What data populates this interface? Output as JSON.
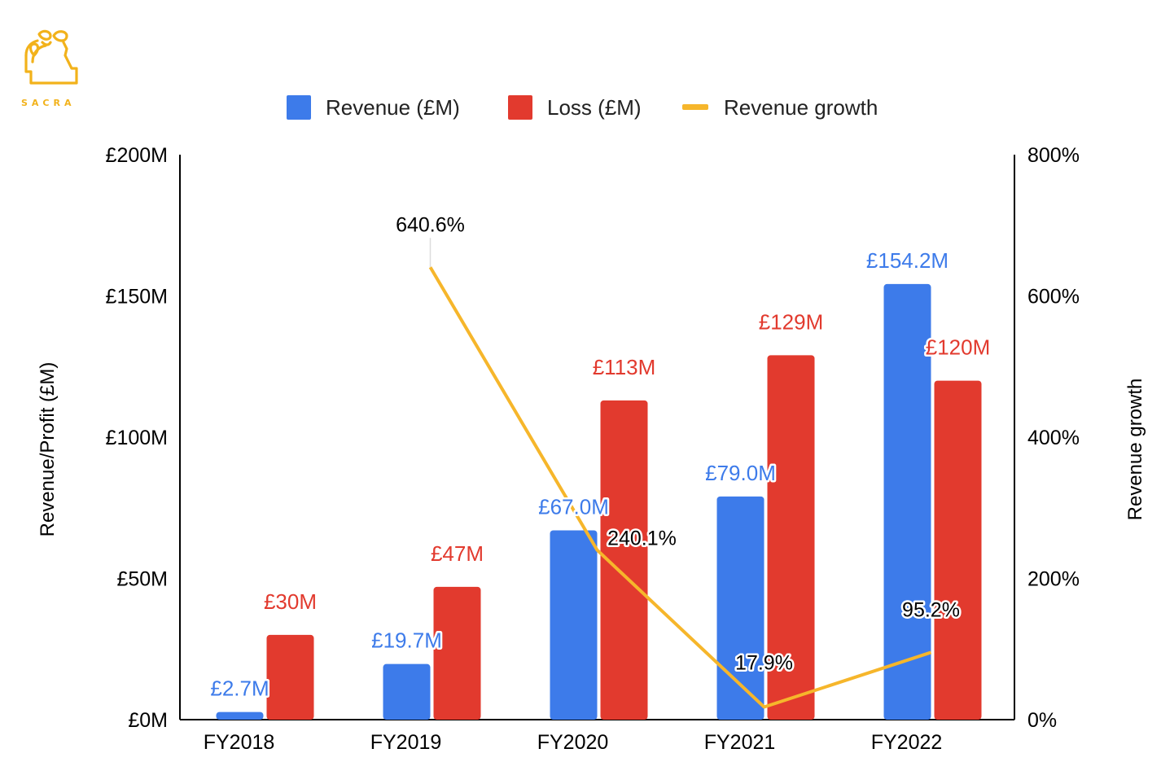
{
  "brand": {
    "name": "SACRA",
    "color": "#F2B21B"
  },
  "colors": {
    "revenue": "#3D7BEA",
    "loss": "#E23A2E",
    "growth": "#F6B62B",
    "axis": "#000000",
    "label_growth": "#000000"
  },
  "chart_data": {
    "type": "bar",
    "categories": [
      "FY2018",
      "FY2019",
      "FY2020",
      "FY2021",
      "FY2022"
    ],
    "series": [
      {
        "name": "Revenue (£M)",
        "kind": "bar",
        "axis": "left",
        "values": [
          2.7,
          19.7,
          67.0,
          79.0,
          154.2
        ],
        "labels": [
          "£2.7M",
          "£19.7M",
          "£67.0M",
          "£79.0M",
          "£154.2M"
        ]
      },
      {
        "name": "Loss (£M)",
        "kind": "bar",
        "axis": "left",
        "values": [
          30,
          47,
          113,
          129,
          120
        ],
        "labels": [
          "£30M",
          "£47M",
          "£113M",
          "£129M",
          "£120M"
        ]
      },
      {
        "name": "Revenue growth",
        "kind": "line",
        "axis": "right",
        "values": [
          null,
          640.6,
          240.1,
          17.9,
          95.2
        ],
        "labels": [
          "",
          "640.6%",
          "240.1%",
          "17.9%",
          "95.2%"
        ]
      }
    ],
    "ylabel": "Revenue/Profit (£M)",
    "ylabel_right": "Revenue growth",
    "ylim": [
      0,
      200
    ],
    "ylim_right": [
      0,
      800
    ],
    "yticks": [
      0,
      50,
      100,
      150,
      200
    ],
    "yticks_labels": [
      "£0M",
      "£50M",
      "£100M",
      "£150M",
      "£200M"
    ],
    "yticks_right": [
      0,
      200,
      400,
      600,
      800
    ],
    "yticks_right_labels": [
      "0%",
      "200%",
      "400%",
      "600%",
      "800%"
    ],
    "legend": "top-center",
    "grid": false
  }
}
